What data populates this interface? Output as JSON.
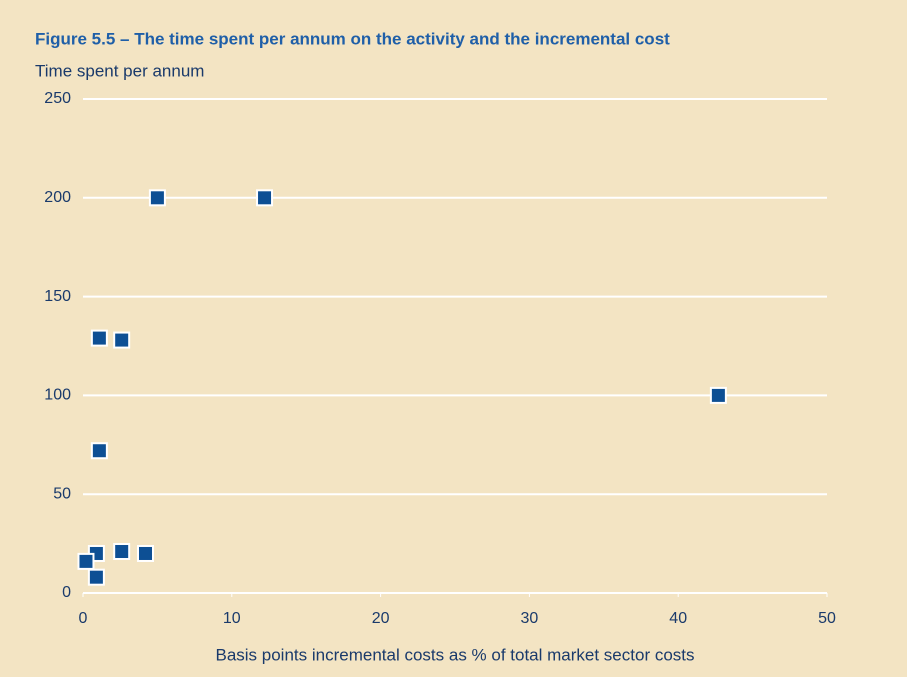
{
  "chart_data": {
    "type": "scatter",
    "title": "Figure 5.5 – The time spent per annum on the activity and the incremental cost",
    "y_label": "Time spent per annum",
    "x_label": "Basis points incremental costs as % of total market sector costs",
    "x": [
      5,
      12.2,
      1.1,
      2.6,
      42.7,
      1.1,
      0.9,
      2.6,
      4.2,
      0.2,
      0.9
    ],
    "values": [
      200,
      200,
      129,
      128,
      100,
      72,
      20,
      21,
      20,
      16,
      8
    ],
    "color": "#0d4f94",
    "xlim": [
      0,
      50
    ],
    "xticks": [
      0,
      10,
      20,
      30,
      40,
      50
    ],
    "ylim": [
      0,
      250
    ],
    "yticks": [
      0,
      50,
      100,
      150,
      200,
      250
    ],
    "grid": true
  }
}
